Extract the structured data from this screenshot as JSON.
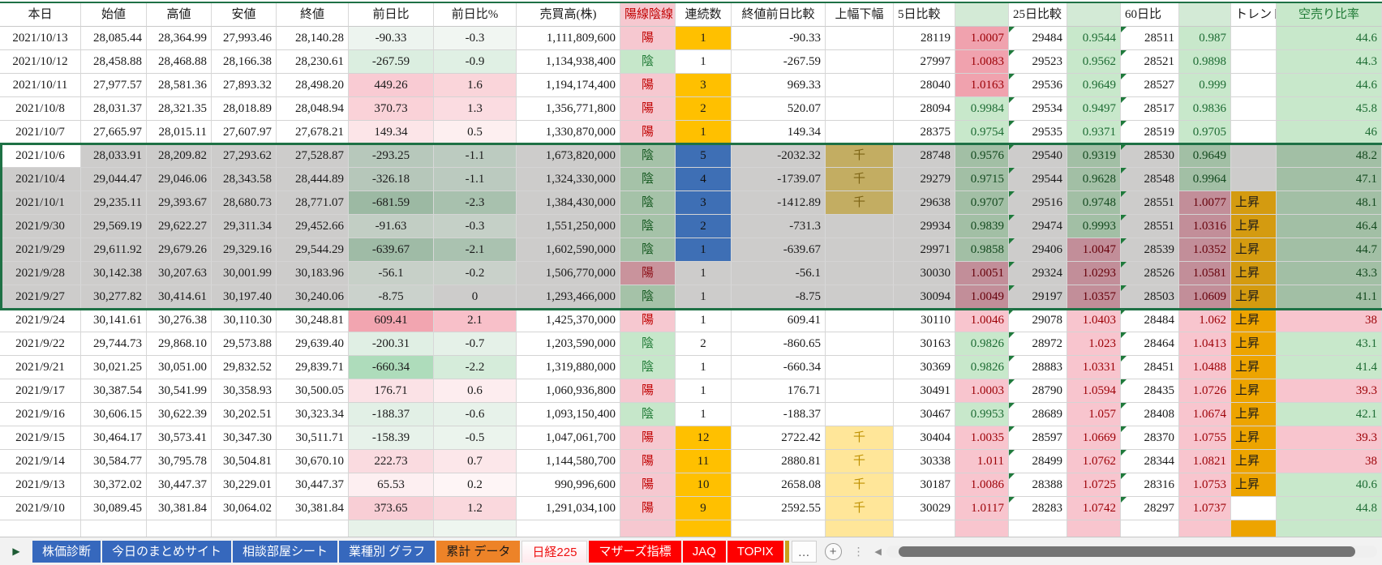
{
  "header": {
    "labels": [
      "本日",
      "始値",
      "高値",
      "安値",
      "終値",
      "前日比",
      "前日比%",
      "売買高(株)",
      "陽線陰線",
      "連続数",
      "終値前日比較",
      "上幅下幅",
      "5日比較",
      "",
      "25日比較",
      "",
      "60日比",
      "",
      "トレンド",
      "空売り比率"
    ]
  },
  "palette": {
    "pink_strong": {
      "bg": "#f0a2ae",
      "fg": "#9c0006"
    },
    "pink_light": {
      "bg": "#f8c5ce",
      "fg": "#9c0006"
    },
    "green_light": {
      "bg": "#c8e8cb",
      "fg": "#1d6b33"
    },
    "green_sel": {
      "bg": "#a2bfa5",
      "fg": "#14491f"
    },
    "pink_sel": {
      "bg": "#c28e99",
      "fg": "#66000a"
    },
    "bull": {
      "bg": "#f6c8d0",
      "fg": "#c00000"
    },
    "bear": {
      "bg": "#c6e7ca",
      "fg": "#1f7a35"
    },
    "bull_sel": {
      "bg": "#c9939c",
      "fg": "#8c0f17"
    },
    "bear_sel": {
      "bg": "#a5c2a8",
      "fg": "#14581f"
    },
    "streak_orange": {
      "bg": "#ffc000",
      "fg": "#1a1a1a"
    },
    "streak_blue": {
      "bg": "#3e6fb5",
      "fg": "#111111"
    },
    "tan_sel": {
      "bg": "#c3ad62",
      "fg": "#7d6414"
    },
    "yellow": {
      "bg": "#ffe699",
      "fg": "#bf9000"
    },
    "trend_orange": {
      "bg": "#eda400",
      "fg": "#1a1a1a"
    },
    "trend_orange_sel": {
      "bg": "#d49b10",
      "fg": "#1a1a1a"
    }
  },
  "selection": {
    "border_color": "#1e7145"
  },
  "rows": [
    {
      "date": "2021/10/13",
      "open": "28,085.44",
      "high": "28,364.99",
      "low": "27,993.46",
      "close": "28,140.28",
      "chg": "-90.33",
      "chg_bg": "#edf4ef",
      "chgp": "-0.3",
      "chgp_bg": "#f1f6f2",
      "vol": "1,111,809,600",
      "candle": "陽",
      "candle_c": "bull",
      "streak": "1",
      "streak_c": "streak_orange",
      "closecmp": "-90.33",
      "updown": "",
      "updown_c": "",
      "d5": "28119",
      "d5r": "1.0007",
      "d5r_c": "pink_strong",
      "d25": "29484",
      "d25r": "0.9544",
      "d25r_c": "green_light",
      "d60": "28511",
      "d60r": "0.987",
      "d60r_c": "green_light",
      "trend": "",
      "trend_c": "",
      "short": "44.6",
      "short_c": "green_light",
      "sel": false,
      "active": false
    },
    {
      "date": "2021/10/12",
      "open": "28,458.88",
      "high": "28,468.88",
      "low": "28,166.38",
      "close": "28,230.61",
      "chg": "-267.59",
      "chg_bg": "#dbeee0",
      "chgp": "-0.9",
      "chgp_bg": "#e0f0e4",
      "vol": "1,134,938,400",
      "candle": "陰",
      "candle_c": "bear",
      "streak": "1",
      "streak_c": "",
      "closecmp": "-267.59",
      "updown": "",
      "updown_c": "",
      "d5": "27997",
      "d5r": "1.0083",
      "d5r_c": "pink_strong",
      "d25": "29523",
      "d25r": "0.9562",
      "d25r_c": "green_light",
      "d60": "28521",
      "d60r": "0.9898",
      "d60r_c": "green_light",
      "trend": "",
      "trend_c": "",
      "short": "44.3",
      "short_c": "green_light",
      "sel": false,
      "active": false
    },
    {
      "date": "2021/10/11",
      "open": "27,977.57",
      "high": "28,581.36",
      "low": "27,893.32",
      "close": "28,498.20",
      "chg": "449.26",
      "chg_bg": "#f9cbd3",
      "chgp": "1.6",
      "chgp_bg": "#fad5da",
      "vol": "1,194,174,400",
      "candle": "陽",
      "candle_c": "bull",
      "streak": "3",
      "streak_c": "streak_orange",
      "closecmp": "969.33",
      "updown": "",
      "updown_c": "",
      "d5": "28040",
      "d5r": "1.0163",
      "d5r_c": "pink_strong",
      "d25": "29536",
      "d25r": "0.9649",
      "d25r_c": "green_light",
      "d60": "28527",
      "d60r": "0.999",
      "d60r_c": "green_light",
      "trend": "",
      "trend_c": "",
      "short": "44.6",
      "short_c": "green_light",
      "sel": false,
      "active": false
    },
    {
      "date": "2021/10/8",
      "open": "28,031.37",
      "high": "28,321.35",
      "low": "28,018.89",
      "close": "28,048.94",
      "chg": "370.73",
      "chg_bg": "#fad2d8",
      "chgp": "1.3",
      "chgp_bg": "#fbdce1",
      "vol": "1,356,771,800",
      "candle": "陽",
      "candle_c": "bull",
      "streak": "2",
      "streak_c": "streak_orange",
      "closecmp": "520.07",
      "updown": "",
      "updown_c": "",
      "d5": "28094",
      "d5r": "0.9984",
      "d5r_c": "green_light",
      "d25": "29534",
      "d25r": "0.9497",
      "d25r_c": "green_light",
      "d60": "28517",
      "d60r": "0.9836",
      "d60r_c": "green_light",
      "trend": "",
      "trend_c": "",
      "short": "45.8",
      "short_c": "green_light",
      "sel": false,
      "active": false
    },
    {
      "date": "2021/10/7",
      "open": "27,665.97",
      "high": "28,015.11",
      "low": "27,607.97",
      "close": "27,678.21",
      "chg": "149.34",
      "chg_bg": "#fce5e8",
      "chgp": "0.5",
      "chgp_bg": "#fdeff0",
      "vol": "1,330,870,000",
      "candle": "陽",
      "candle_c": "bull",
      "streak": "1",
      "streak_c": "streak_orange",
      "closecmp": "149.34",
      "updown": "",
      "updown_c": "",
      "d5": "28375",
      "d5r": "0.9754",
      "d5r_c": "green_light",
      "d25": "29535",
      "d25r": "0.9371",
      "d25r_c": "green_light",
      "d60": "28519",
      "d60r": "0.9705",
      "d60r_c": "green_light",
      "trend": "",
      "trend_c": "",
      "short": "46",
      "short_c": "green_light",
      "sel": false,
      "active": false
    },
    {
      "date": "2021/10/6",
      "open": "28,033.91",
      "high": "28,209.82",
      "low": "27,293.62",
      "close": "27,528.87",
      "chg": "-293.25",
      "chg_bg": "#b7c8bb",
      "chgp": "-1.1",
      "chgp_bg": "#bccbc0",
      "vol": "1,673,820,000",
      "candle": "陰",
      "candle_c": "bear_sel",
      "streak": "5",
      "streak_c": "streak_blue",
      "closecmp": "-2032.32",
      "updown": "千",
      "updown_c": "tan_sel",
      "d5": "28748",
      "d5r": "0.9576",
      "d5r_c": "green_sel",
      "d25": "29540",
      "d25r": "0.9319",
      "d25r_c": "green_sel",
      "d60": "28530",
      "d60r": "0.9649",
      "d60r_c": "green_sel",
      "trend": "",
      "trend_c": "",
      "short": "48.2",
      "short_c": "green_sel",
      "sel": true,
      "active": true
    },
    {
      "date": "2021/10/4",
      "open": "29,044.47",
      "high": "29,046.06",
      "low": "28,343.58",
      "close": "28,444.89",
      "chg": "-326.18",
      "chg_bg": "#b6c7ba",
      "chgp": "-1.1",
      "chgp_bg": "#bbcabf",
      "vol": "1,324,330,000",
      "candle": "陰",
      "candle_c": "bear_sel",
      "streak": "4",
      "streak_c": "streak_blue",
      "closecmp": "-1739.07",
      "updown": "千",
      "updown_c": "tan_sel",
      "d5": "29279",
      "d5r": "0.9715",
      "d5r_c": "green_sel",
      "d25": "29544",
      "d25r": "0.9628",
      "d25r_c": "green_sel",
      "d60": "28548",
      "d60r": "0.9964",
      "d60r_c": "green_sel",
      "trend": "",
      "trend_c": "",
      "short": "47.1",
      "short_c": "green_sel",
      "sel": true,
      "active": false
    },
    {
      "date": "2021/10/1",
      "open": "29,235.11",
      "high": "29,393.67",
      "low": "28,680.73",
      "close": "28,771.07",
      "chg": "-681.59",
      "chg_bg": "#9cb9a3",
      "chgp": "-2.3",
      "chgp_bg": "#a8c1ae",
      "vol": "1,384,430,000",
      "candle": "陰",
      "candle_c": "bear_sel",
      "streak": "3",
      "streak_c": "streak_blue",
      "closecmp": "-1412.89",
      "updown": "千",
      "updown_c": "tan_sel",
      "d5": "29638",
      "d5r": "0.9707",
      "d5r_c": "green_sel",
      "d25": "29516",
      "d25r": "0.9748",
      "d25r_c": "green_sel",
      "d60": "28551",
      "d60r": "1.0077",
      "d60r_c": "pink_sel",
      "trend": "上昇",
      "trend_c": "trend_orange_sel",
      "short": "48.1",
      "short_c": "green_sel",
      "sel": true,
      "active": false
    },
    {
      "date": "2021/9/30",
      "open": "29,569.19",
      "high": "29,622.27",
      "low": "29,311.34",
      "close": "29,452.66",
      "chg": "-91.63",
      "chg_bg": "#c2cec4",
      "chgp": "-0.3",
      "chgp_bg": "#c5d0c7",
      "vol": "1,551,250,000",
      "candle": "陰",
      "candle_c": "bear_sel",
      "streak": "2",
      "streak_c": "streak_blue",
      "closecmp": "-731.3",
      "updown": "",
      "updown_c": "",
      "d5": "29934",
      "d5r": "0.9839",
      "d5r_c": "green_sel",
      "d25": "29474",
      "d25r": "0.9993",
      "d25r_c": "green_sel",
      "d60": "28551",
      "d60r": "1.0316",
      "d60r_c": "pink_sel",
      "trend": "上昇",
      "trend_c": "trend_orange_sel",
      "short": "46.4",
      "short_c": "green_sel",
      "sel": true,
      "active": false
    },
    {
      "date": "2021/9/29",
      "open": "29,611.92",
      "high": "29,679.26",
      "low": "29,329.16",
      "close": "29,544.29",
      "chg": "-639.67",
      "chg_bg": "#9fbba6",
      "chgp": "-2.1",
      "chgp_bg": "#aac2b0",
      "vol": "1,602,590,000",
      "candle": "陰",
      "candle_c": "bear_sel",
      "streak": "1",
      "streak_c": "streak_blue",
      "closecmp": "-639.67",
      "updown": "",
      "updown_c": "",
      "d5": "29971",
      "d5r": "0.9858",
      "d5r_c": "green_sel",
      "d25": "29406",
      "d25r": "1.0047",
      "d25r_c": "pink_sel",
      "d60": "28539",
      "d60r": "1.0352",
      "d60r_c": "pink_sel",
      "trend": "上昇",
      "trend_c": "trend_orange_sel",
      "short": "44.7",
      "short_c": "green_sel",
      "sel": true,
      "active": false
    },
    {
      "date": "2021/9/28",
      "open": "30,142.38",
      "high": "30,207.63",
      "low": "30,001.99",
      "close": "30,183.96",
      "chg": "-56.1",
      "chg_bg": "#c7d0c8",
      "chgp": "-0.2",
      "chgp_bg": "#c9d1ca",
      "vol": "1,506,770,000",
      "candle": "陽",
      "candle_c": "bull_sel",
      "streak": "1",
      "streak_c": "",
      "closecmp": "-56.1",
      "updown": "",
      "updown_c": "",
      "d5": "30030",
      "d5r": "1.0051",
      "d5r_c": "pink_sel",
      "d25": "29324",
      "d25r": "1.0293",
      "d25r_c": "pink_sel",
      "d60": "28526",
      "d60r": "1.0581",
      "d60r_c": "pink_sel",
      "trend": "上昇",
      "trend_c": "trend_orange_sel",
      "short": "43.3",
      "short_c": "green_sel",
      "sel": true,
      "active": false
    },
    {
      "date": "2021/9/27",
      "open": "30,277.82",
      "high": "30,414.61",
      "low": "30,197.40",
      "close": "30,240.06",
      "chg": "-8.75",
      "chg_bg": "#cbd2cc",
      "chgp": "0",
      "chgp_bg": "#cdcccb",
      "vol": "1,293,466,000",
      "candle": "陰",
      "candle_c": "bear_sel",
      "streak": "1",
      "streak_c": "",
      "closecmp": "-8.75",
      "updown": "",
      "updown_c": "",
      "d5": "30094",
      "d5r": "1.0049",
      "d5r_c": "pink_sel",
      "d25": "29197",
      "d25r": "1.0357",
      "d25r_c": "pink_sel",
      "d60": "28503",
      "d60r": "1.0609",
      "d60r_c": "pink_sel",
      "trend": "上昇",
      "trend_c": "trend_orange_sel",
      "short": "41.1",
      "short_c": "green_sel",
      "sel": true,
      "active": false
    },
    {
      "date": "2021/9/24",
      "open": "30,141.61",
      "high": "30,276.38",
      "low": "30,110.30",
      "close": "30,248.81",
      "chg": "609.41",
      "chg_bg": "#f2a5b0",
      "chgp": "2.1",
      "chgp_bg": "#f8c0c9",
      "vol": "1,425,370,000",
      "candle": "陽",
      "candle_c": "bull",
      "streak": "1",
      "streak_c": "",
      "closecmp": "609.41",
      "updown": "",
      "updown_c": "",
      "d5": "30110",
      "d5r": "1.0046",
      "d5r_c": "pink_light",
      "d25": "29078",
      "d25r": "1.0403",
      "d25r_c": "pink_light",
      "d60": "28484",
      "d60r": "1.062",
      "d60r_c": "pink_light",
      "trend": "上昇",
      "trend_c": "trend_orange",
      "short": "38",
      "short_c": "pink_light",
      "sel": false,
      "active": false
    },
    {
      "date": "2021/9/22",
      "open": "29,744.73",
      "high": "29,868.10",
      "low": "29,573.88",
      "close": "29,639.40",
      "chg": "-200.31",
      "chg_bg": "#e0efe4",
      "chgp": "-0.7",
      "chgp_bg": "#e5f1e8",
      "vol": "1,203,590,000",
      "candle": "陰",
      "candle_c": "bear",
      "streak": "2",
      "streak_c": "",
      "closecmp": "-860.65",
      "updown": "",
      "updown_c": "",
      "d5": "30163",
      "d5r": "0.9826",
      "d5r_c": "green_light",
      "d25": "28972",
      "d25r": "1.023",
      "d25r_c": "pink_light",
      "d60": "28464",
      "d60r": "1.0413",
      "d60r_c": "pink_light",
      "trend": "上昇",
      "trend_c": "trend_orange",
      "short": "43.1",
      "short_c": "green_light",
      "sel": false,
      "active": false
    },
    {
      "date": "2021/9/21",
      "open": "30,021.25",
      "high": "30,051.00",
      "low": "29,832.52",
      "close": "29,839.71",
      "chg": "-660.34",
      "chg_bg": "#aedcbb",
      "chgp": "-2.2",
      "chgp_bg": "#d5ecda",
      "vol": "1,319,880,000",
      "candle": "陰",
      "candle_c": "bear",
      "streak": "1",
      "streak_c": "",
      "closecmp": "-660.34",
      "updown": "",
      "updown_c": "",
      "d5": "30369",
      "d5r": "0.9826",
      "d5r_c": "green_light",
      "d25": "28883",
      "d25r": "1.0331",
      "d25r_c": "pink_light",
      "d60": "28451",
      "d60r": "1.0488",
      "d60r_c": "pink_light",
      "trend": "上昇",
      "trend_c": "trend_orange",
      "short": "41.4",
      "short_c": "green_light",
      "sel": false,
      "active": false
    },
    {
      "date": "2021/9/17",
      "open": "30,387.54",
      "high": "30,541.99",
      "low": "30,358.93",
      "close": "30,500.05",
      "chg": "176.71",
      "chg_bg": "#fbe2e6",
      "chgp": "0.6",
      "chgp_bg": "#fdedef",
      "vol": "1,060,936,800",
      "candle": "陽",
      "candle_c": "bull",
      "streak": "1",
      "streak_c": "",
      "closecmp": "176.71",
      "updown": "",
      "updown_c": "",
      "d5": "30491",
      "d5r": "1.0003",
      "d5r_c": "pink_light",
      "d25": "28790",
      "d25r": "1.0594",
      "d25r_c": "pink_light",
      "d60": "28435",
      "d60r": "1.0726",
      "d60r_c": "pink_light",
      "trend": "上昇",
      "trend_c": "trend_orange",
      "short": "39.3",
      "short_c": "pink_light",
      "sel": false,
      "active": false
    },
    {
      "date": "2021/9/16",
      "open": "30,606.15",
      "high": "30,622.39",
      "low": "30,202.51",
      "close": "30,323.34",
      "chg": "-188.37",
      "chg_bg": "#e2f0e6",
      "chgp": "-0.6",
      "chgp_bg": "#e7f2ea",
      "vol": "1,093,150,400",
      "candle": "陰",
      "candle_c": "bear",
      "streak": "1",
      "streak_c": "",
      "closecmp": "-188.37",
      "updown": "",
      "updown_c": "",
      "d5": "30467",
      "d5r": "0.9953",
      "d5r_c": "green_light",
      "d25": "28689",
      "d25r": "1.057",
      "d25r_c": "pink_light",
      "d60": "28408",
      "d60r": "1.0674",
      "d60r_c": "pink_light",
      "trend": "上昇",
      "trend_c": "trend_orange",
      "short": "42.1",
      "short_c": "green_light",
      "sel": false,
      "active": false
    },
    {
      "date": "2021/9/15",
      "open": "30,464.17",
      "high": "30,573.41",
      "low": "30,347.30",
      "close": "30,511.71",
      "chg": "-158.39",
      "chg_bg": "#e7f2ea",
      "chgp": "-0.5",
      "chgp_bg": "#ebf4ed",
      "vol": "1,047,061,700",
      "candle": "陽",
      "candle_c": "bull",
      "streak": "12",
      "streak_c": "streak_orange",
      "closecmp": "2722.42",
      "updown": "千",
      "updown_c": "yellow",
      "d5": "30404",
      "d5r": "1.0035",
      "d5r_c": "pink_light",
      "d25": "28597",
      "d25r": "1.0669",
      "d25r_c": "pink_light",
      "d60": "28370",
      "d60r": "1.0755",
      "d60r_c": "pink_light",
      "trend": "上昇",
      "trend_c": "trend_orange",
      "short": "39.3",
      "short_c": "pink_light",
      "sel": false,
      "active": false
    },
    {
      "date": "2021/9/14",
      "open": "30,584.77",
      "high": "30,795.78",
      "low": "30,504.81",
      "close": "30,670.10",
      "chg": "222.73",
      "chg_bg": "#fadbe0",
      "chgp": "0.7",
      "chgp_bg": "#fce7ea",
      "vol": "1,144,580,700",
      "candle": "陽",
      "candle_c": "bull",
      "streak": "11",
      "streak_c": "streak_orange",
      "closecmp": "2880.81",
      "updown": "千",
      "updown_c": "yellow",
      "d5": "30338",
      "d5r": "1.011",
      "d5r_c": "pink_light",
      "d25": "28499",
      "d25r": "1.0762",
      "d25r_c": "pink_light",
      "d60": "28344",
      "d60r": "1.0821",
      "d60r_c": "pink_light",
      "trend": "上昇",
      "trend_c": "trend_orange",
      "short": "38",
      "short_c": "pink_light",
      "sel": false,
      "active": false
    },
    {
      "date": "2021/9/13",
      "open": "30,372.02",
      "high": "30,447.37",
      "low": "30,229.01",
      "close": "30,447.37",
      "chg": "65.53",
      "chg_bg": "#fdeff1",
      "chgp": "0.2",
      "chgp_bg": "#fef5f6",
      "vol": "990,996,600",
      "candle": "陽",
      "candle_c": "bull",
      "streak": "10",
      "streak_c": "streak_orange",
      "closecmp": "2658.08",
      "updown": "千",
      "updown_c": "yellow",
      "d5": "30187",
      "d5r": "1.0086",
      "d5r_c": "pink_light",
      "d25": "28388",
      "d25r": "1.0725",
      "d25r_c": "pink_light",
      "d60": "28316",
      "d60r": "1.0753",
      "d60r_c": "pink_light",
      "trend": "上昇",
      "trend_c": "trend_orange",
      "short": "40.6",
      "short_c": "green_light",
      "sel": false,
      "active": false
    },
    {
      "date": "2021/9/10",
      "open": "30,089.45",
      "high": "30,381.84",
      "low": "30,064.02",
      "close": "30,381.84",
      "chg": "373.65",
      "chg_bg": "#f8ced5",
      "chgp": "1.2",
      "chgp_bg": "#fad8dd",
      "vol": "1,291,034,100",
      "candle": "陽",
      "candle_c": "bull",
      "streak": "9",
      "streak_c": "streak_orange",
      "closecmp": "2592.55",
      "updown": "千",
      "updown_c": "yellow",
      "d5": "30029",
      "d5r": "1.0117",
      "d5r_c": "pink_light",
      "d25": "28283",
      "d25r": "1.0742",
      "d25r_c": "pink_light",
      "d60": "28297",
      "d60r": "1.0737",
      "d60r_c": "pink_light",
      "trend": "",
      "trend_c": "",
      "short": "44.8",
      "short_c": "green_light",
      "sel": false,
      "active": false
    }
  ],
  "partial_row": {
    "chg_bg": "#e7f2e9",
    "chgp_bg": "#eef6f0",
    "candle_bg": "#f6c8d0",
    "streak_bg": "#ffc000",
    "updown_bg": "#ffe699",
    "d5r_bg": "#f8c5ce",
    "d25r_bg": "#f8c5ce",
    "d60r_bg": "#f8c5ce",
    "trend_bg": "#eda400",
    "short_bg": "#c8e8cb"
  },
  "tabbar": {
    "nav_left_icon": "▶",
    "tabs": [
      {
        "label": "株価診断",
        "style": "blue"
      },
      {
        "label": "今日のまとめサイト",
        "style": "blue"
      },
      {
        "label": "相談部屋シート",
        "style": "blue"
      },
      {
        "label": "業種別 グラフ",
        "style": "blue"
      },
      {
        "label": "累計 データ",
        "style": "orange"
      },
      {
        "label": "日経225",
        "style": "active-red"
      },
      {
        "label": "マザーズ指標",
        "style": "red"
      },
      {
        "label": "JAQ",
        "style": "red"
      },
      {
        "label": "TOPIX",
        "style": "red"
      },
      {
        "label": "…",
        "style": "more"
      }
    ],
    "add_icon": "+",
    "dots_icon": "⋮",
    "scroll_left_icon": "◀"
  }
}
